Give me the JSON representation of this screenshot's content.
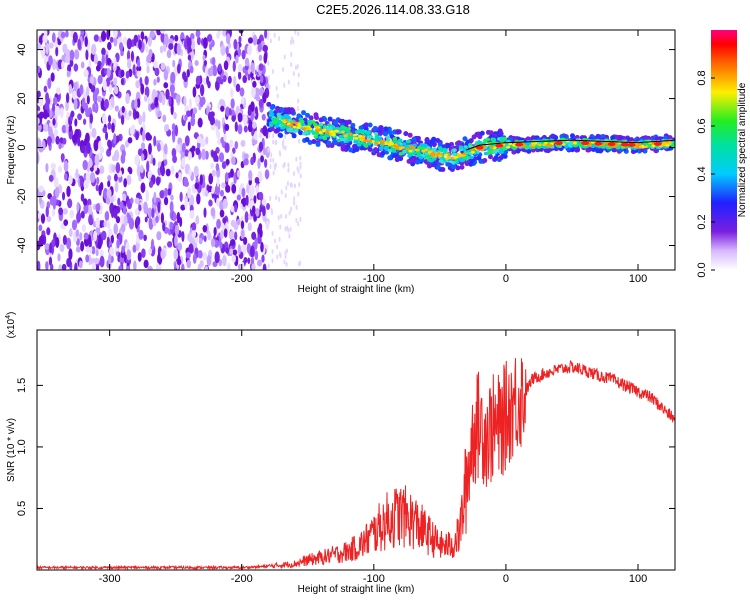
{
  "title": "C2E5.2026.114.08.33.G18",
  "chart_data": [
    {
      "type": "heatmap",
      "xlabel": "Height of straight line (km)",
      "ylabel": "Frequency (Hz)",
      "xlim": [
        -355,
        128
      ],
      "ylim": [
        -50,
        48
      ],
      "x_ticks": [
        -300,
        -200,
        -100,
        0,
        100
      ],
      "y_ticks": [
        -40,
        -20,
        0,
        20,
        40
      ],
      "x_tick_labels": [
        "-300",
        "-200",
        "-100",
        "0",
        "100"
      ],
      "y_tick_labels": [
        "-40",
        "-20",
        "0",
        "20",
        "40"
      ],
      "noise_region_x": [
        -355,
        -180
      ],
      "signal_trend": [
        {
          "x": -180,
          "y": 12
        },
        {
          "x": -150,
          "y": 8
        },
        {
          "x": -100,
          "y": 3
        },
        {
          "x": -60,
          "y": -2
        },
        {
          "x": -40,
          "y": -4
        },
        {
          "x": -20,
          "y": 0
        },
        {
          "x": 0,
          "y": 1
        },
        {
          "x": 50,
          "y": 2
        },
        {
          "x": 100,
          "y": 1
        },
        {
          "x": 128,
          "y": 2
        }
      ],
      "colorbar": {
        "label": "Normalized spectral amplitude",
        "range": [
          0,
          1
        ],
        "ticks": [
          0.0,
          0.2,
          0.4,
          0.6,
          0.8
        ],
        "tick_labels": [
          "0.0",
          "0.2",
          "0.4",
          "0.6",
          "0.8"
        ],
        "colormap": "rainbow (white-violet-blue-cyan-green-yellow-red-magenta)"
      },
      "grid": false
    },
    {
      "type": "line",
      "xlabel": "Height of straight line (km)",
      "ylabel": "SNR (10 * v/v)",
      "y_multiplier_label": "(x10",
      "y_multiplier_exp": "4",
      "xlim": [
        -355,
        128
      ],
      "ylim": [
        0,
        1.95
      ],
      "x_ticks": [
        -300,
        -200,
        -100,
        0,
        100
      ],
      "y_ticks": [
        0.5,
        1.0,
        1.5
      ],
      "x_tick_labels": [
        "-300",
        "-200",
        "-100",
        "0",
        "100"
      ],
      "y_tick_labels": [
        "0.5",
        "1.0",
        "1.5"
      ],
      "series": [
        {
          "color": "#ee2222",
          "x": [
            -355,
            -300,
            -250,
            -200,
            -180,
            -160,
            -150,
            -140,
            -120,
            -110,
            -100,
            -90,
            -80,
            -70,
            -60,
            -50,
            -40,
            -35,
            -30,
            -25,
            -20,
            -15,
            -10,
            -5,
            0,
            5,
            10,
            15,
            20,
            30,
            40,
            50,
            60,
            70,
            80,
            90,
            100,
            110,
            120,
            128
          ],
          "y": [
            0.02,
            0.02,
            0.02,
            0.02,
            0.03,
            0.05,
            0.08,
            0.1,
            0.15,
            0.2,
            0.3,
            0.4,
            0.45,
            0.4,
            0.3,
            0.2,
            0.2,
            0.3,
            0.7,
            1.1,
            1.2,
            1.1,
            1.15,
            1.15,
            1.25,
            1.35,
            1.4,
            1.45,
            1.55,
            1.6,
            1.63,
            1.65,
            1.62,
            1.58,
            1.55,
            1.5,
            1.45,
            1.4,
            1.3,
            1.22
          ]
        }
      ],
      "grid": false
    }
  ]
}
